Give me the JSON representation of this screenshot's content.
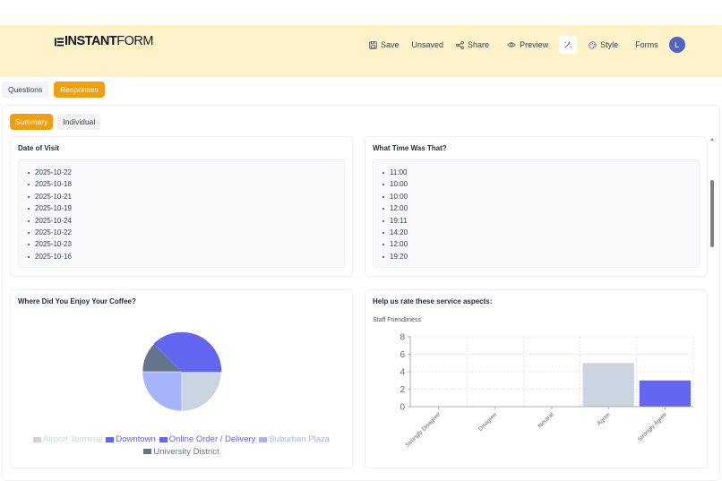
{
  "header": {
    "logo_bold": "INSTANT",
    "logo_light": "FORM",
    "nav": {
      "save": "Save",
      "unsaved": "Unsaved",
      "share": "Share",
      "preview": "Preview",
      "style": "Style",
      "forms": "Forms",
      "avatar_initial": "L"
    },
    "icons": [
      "save-icon",
      "share-icon",
      "eye-icon",
      "magic-wand-icon",
      "palette-icon"
    ]
  },
  "tabs": [
    {
      "label": "Questions",
      "active": false
    },
    {
      "label": "Responses",
      "active": true
    }
  ],
  "subtabs": [
    {
      "label": "Summary",
      "active": true
    },
    {
      "label": "Individual",
      "active": false
    }
  ],
  "colors": {
    "accent": "#f59e0b",
    "header_bg": "#fef3c8",
    "avatar": "#5062c4"
  },
  "cards": {
    "date_of_visit": {
      "title": "Date of Visit",
      "items": [
        "2025-10-22",
        "2025-10-18",
        "2025-10-21",
        "2025-10-19",
        "2025-10-24",
        "2025-10-22",
        "2025-10-23",
        "2025-10-16"
      ]
    },
    "time": {
      "title": "What Time Was That?",
      "items": [
        "11:00",
        "10:00",
        "10:00",
        "12:00",
        "19:11",
        "14:20",
        "12:00",
        "19:20"
      ]
    },
    "location": {
      "title": "Where Did You Enjoy Your Coffee?"
    },
    "service": {
      "title": "Help us rate these service aspects:",
      "subtitle": "Staff Friendliness"
    }
  },
  "chart_data": [
    {
      "type": "pie",
      "title": "Where Did You Enjoy Your Coffee?",
      "categories": [
        "Airport Terminal",
        "Downtown",
        "Online Order / Delivery",
        "Suburban Plaza",
        "University District"
      ],
      "values": [
        2,
        1,
        2,
        2,
        1
      ],
      "colors": [
        "#cbd5e1",
        "#6366f1",
        "#6366f1",
        "#a5b4fc",
        "#64748b"
      ],
      "legend_position": "bottom",
      "legend": [
        "Airport Terminal",
        "Downtown",
        "Online Order / Delivery",
        "Suburban Plaza",
        "University District"
      ]
    },
    {
      "type": "bar",
      "title": "Staff Friendliness",
      "categories": [
        "Strongly Disagree",
        "Disagree",
        "Neutral",
        "Agree",
        "Strongly Agree"
      ],
      "values": [
        0,
        0,
        0,
        5,
        3
      ],
      "colors": [
        "#cbd5e1",
        "#6366f1",
        "#6366f1",
        "#cbd5e1",
        "#6366f1"
      ],
      "ylim": [
        0,
        8
      ],
      "yticks": [
        0,
        2,
        4,
        6,
        8
      ],
      "grid": true,
      "xlabel": "",
      "ylabel": ""
    }
  ]
}
